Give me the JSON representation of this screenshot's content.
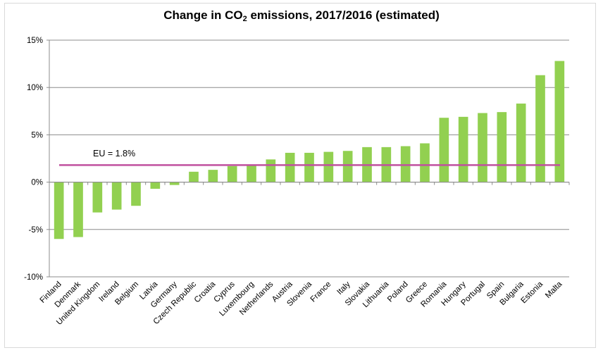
{
  "chart_data": {
    "type": "bar",
    "title_parts": {
      "pre": "Change in CO",
      "sub": "2",
      "post": " emissions, 2017/2016 (estimated)"
    },
    "xlabel": "",
    "ylabel": "",
    "ylim": [
      -10,
      15
    ],
    "yticks": [
      15,
      10,
      5,
      0,
      -5,
      -10
    ],
    "ytick_labels": [
      "15%",
      "10%",
      "5%",
      "0%",
      "-5%",
      "-10%"
    ],
    "grid": true,
    "categories": [
      "Finland",
      "Denmark",
      "United Kingdom",
      "Ireland",
      "Belgium",
      "Latvia",
      "Germany",
      "Czech Republic",
      "Croatia",
      "Cyprus",
      "Luxembourg",
      "Netherlands",
      "Austria",
      "Slovenia",
      "France",
      "Italy",
      "Slovakia",
      "Lithuania",
      "Poland",
      "Greece",
      "Romania",
      "Hungary",
      "Portugal",
      "Spain",
      "Bulgaria",
      "Estonia",
      "Malta"
    ],
    "values": [
      -6.0,
      -5.8,
      -3.2,
      -2.9,
      -2.5,
      -0.7,
      -0.3,
      1.1,
      1.3,
      1.7,
      1.8,
      2.4,
      3.1,
      3.1,
      3.2,
      3.3,
      3.7,
      3.7,
      3.8,
      4.1,
      6.8,
      6.9,
      7.3,
      7.4,
      8.3,
      11.3,
      12.8
    ],
    "reference_line": {
      "label": "EU = 1.8%",
      "value": 1.8
    },
    "colors": {
      "bar": "#92d050",
      "reference_line": "#c0509f",
      "grid": "#8c8c8c",
      "axis": "#8c8c8c"
    }
  }
}
